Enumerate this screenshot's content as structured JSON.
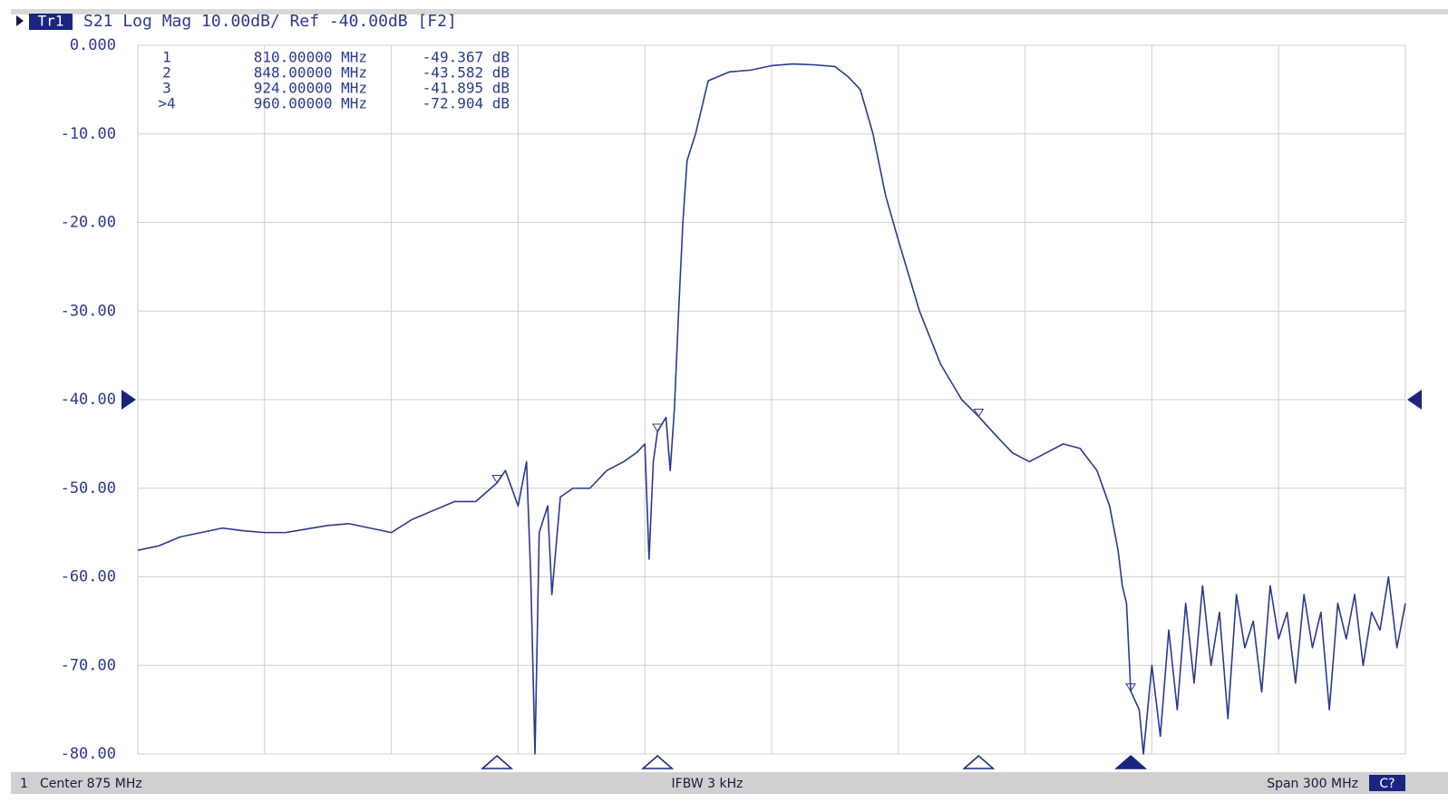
{
  "header": {
    "trace": "Tr1",
    "text": "S21 Log Mag 10.00dB/ Ref -40.00dB [F2]"
  },
  "footer": {
    "channel": "1",
    "center": "Center 875 MHz",
    "ifbw": "IFBW 3 kHz",
    "span": "Span 300 MHz",
    "status": "C?"
  },
  "chart_data": {
    "type": "line",
    "color": "#2b3990",
    "grid": true,
    "xlim": [
      725,
      1025
    ],
    "xticks": [
      725,
      755,
      785,
      815,
      845,
      875,
      905,
      935,
      965,
      995,
      1025
    ],
    "ylim": [
      -80,
      0
    ],
    "yticks": [
      {
        "value": 0,
        "label": "0.000"
      },
      {
        "value": -10,
        "label": "-10.00"
      },
      {
        "value": -20,
        "label": "-20.00"
      },
      {
        "value": -30,
        "label": "-30.00"
      },
      {
        "value": -40,
        "label": "-40.00"
      },
      {
        "value": -50,
        "label": "-50.00"
      },
      {
        "value": -60,
        "label": "-60.00"
      },
      {
        "value": -70,
        "label": "-70.00"
      },
      {
        "value": -80,
        "label": "-80.00"
      }
    ],
    "reference": -40,
    "x": [
      725,
      730,
      735,
      740,
      745,
      750,
      755,
      760,
      765,
      770,
      775,
      780,
      785,
      790,
      795,
      800,
      805,
      810,
      812,
      815,
      817,
      818,
      819,
      820,
      822,
      823,
      825,
      828,
      832,
      836,
      840,
      843,
      845,
      846,
      847,
      848,
      850,
      851,
      852,
      853,
      854,
      855,
      857,
      860,
      865,
      870,
      875,
      880,
      885,
      890,
      893,
      896,
      899,
      902,
      905,
      910,
      915,
      920,
      924,
      928,
      932,
      936,
      940,
      944,
      948,
      952,
      955,
      957,
      958,
      959,
      960,
      962,
      963,
      965,
      967,
      969,
      971,
      973,
      975,
      977,
      979,
      981,
      983,
      985,
      987,
      989,
      991,
      993,
      995,
      997,
      999,
      1001,
      1003,
      1005,
      1007,
      1009,
      1011,
      1013,
      1015,
      1017,
      1019,
      1021,
      1023,
      1025
    ],
    "values": [
      -57,
      -56.5,
      -55.5,
      -55,
      -54.5,
      -54.8,
      -55,
      -55,
      -54.6,
      -54.2,
      -54,
      -54.5,
      -55,
      -53.5,
      -52.5,
      -51.5,
      -51.5,
      -49.4,
      -48,
      -52,
      -47,
      -60,
      -80,
      -55,
      -52,
      -62,
      -51,
      -50,
      -50,
      -48,
      -47,
      -46,
      -45,
      -58,
      -47,
      -43.6,
      -42,
      -48,
      -41,
      -30,
      -20,
      -13,
      -10,
      -4,
      -3,
      -2.8,
      -2.3,
      -2.1,
      -2.2,
      -2.4,
      -3.5,
      -5,
      -10,
      -17,
      -22,
      -30,
      -36,
      -40,
      -41.9,
      -44,
      -46,
      -47,
      -46,
      -45,
      -45.5,
      -48,
      -52,
      -57,
      -61,
      -63,
      -72.9,
      -75,
      -80,
      -70,
      -78,
      -66,
      -75,
      -63,
      -72,
      -61,
      -70,
      -64,
      -76,
      -62,
      -68,
      -65,
      -73,
      -61,
      -67,
      -64,
      -72,
      -62,
      -68,
      -64,
      -75,
      -63,
      -67,
      -62,
      -70,
      -64,
      -66,
      -60,
      -68,
      -63
    ],
    "markers": [
      {
        "label": "1",
        "x": 810,
        "x_label": "810.00000 MHz",
        "value": -49.367,
        "value_label": "-49.367 dB"
      },
      {
        "label": "2",
        "x": 848,
        "x_label": "848.00000 MHz",
        "value": -43.582,
        "value_label": "-43.582 dB"
      },
      {
        "label": "3",
        "x": 924,
        "x_label": "924.00000 MHz",
        "value": -41.895,
        "value_label": "-41.895 dB"
      },
      {
        "label": ">4",
        "x": 960,
        "x_label": "960.00000 MHz",
        "value": -72.904,
        "value_label": "-72.904 dB"
      }
    ]
  }
}
